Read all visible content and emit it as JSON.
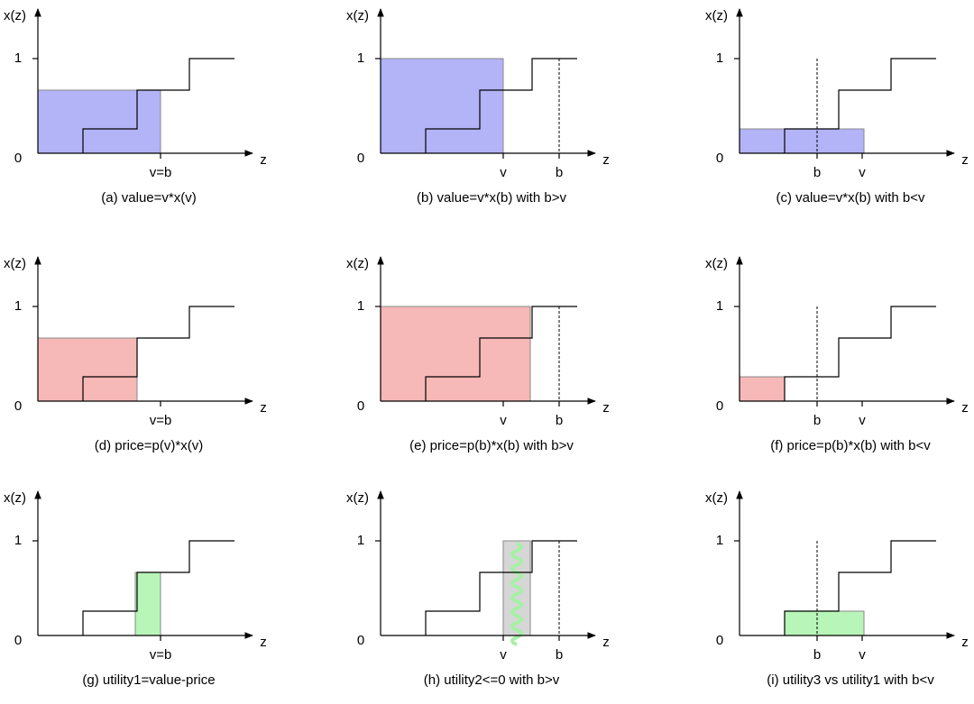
{
  "panels": [
    {
      "y_axis": "x(z)",
      "one": "1",
      "zero": "0",
      "x_axis": "z",
      "labels": [
        "v=b"
      ],
      "caption": "(a) value=v*x(v)"
    },
    {
      "y_axis": "x(z)",
      "one": "1",
      "zero": "0",
      "x_axis": "z",
      "labels": [
        "v",
        "b"
      ],
      "caption": "(b) value=v*x(b) with b>v"
    },
    {
      "y_axis": "x(z)",
      "one": "1",
      "zero": "0",
      "x_axis": "z",
      "labels": [
        "b",
        "v"
      ],
      "caption": "(c) value=v*x(b) with b<v"
    },
    {
      "y_axis": "x(z)",
      "one": "1",
      "zero": "0",
      "x_axis": "z",
      "labels": [
        "v=b"
      ],
      "caption": "(d) price=p(v)*x(v)"
    },
    {
      "y_axis": "x(z)",
      "one": "1",
      "zero": "0",
      "x_axis": "z",
      "labels": [
        "v",
        "b"
      ],
      "caption": "(e) price=p(b)*x(b) with b>v"
    },
    {
      "y_axis": "x(z)",
      "one": "1",
      "zero": "0",
      "x_axis": "z",
      "labels": [
        "b",
        "v"
      ],
      "caption": "(f) price=p(b)*x(b) with b<v"
    },
    {
      "y_axis": "x(z)",
      "one": "1",
      "zero": "0",
      "x_axis": "z",
      "labels": [
        "v=b"
      ],
      "caption": "(g) utility1=value-price"
    },
    {
      "y_axis": "x(z)",
      "one": "1",
      "zero": "0",
      "x_axis": "z",
      "labels": [
        "v",
        "b"
      ],
      "caption": "(h) utility2<=0 with b>v"
    },
    {
      "y_axis": "x(z)",
      "one": "1",
      "zero": "0",
      "x_axis": "z",
      "labels": [
        "b",
        "v"
      ],
      "caption": "(i) utility3 vs utility1 with b<v"
    }
  ]
}
